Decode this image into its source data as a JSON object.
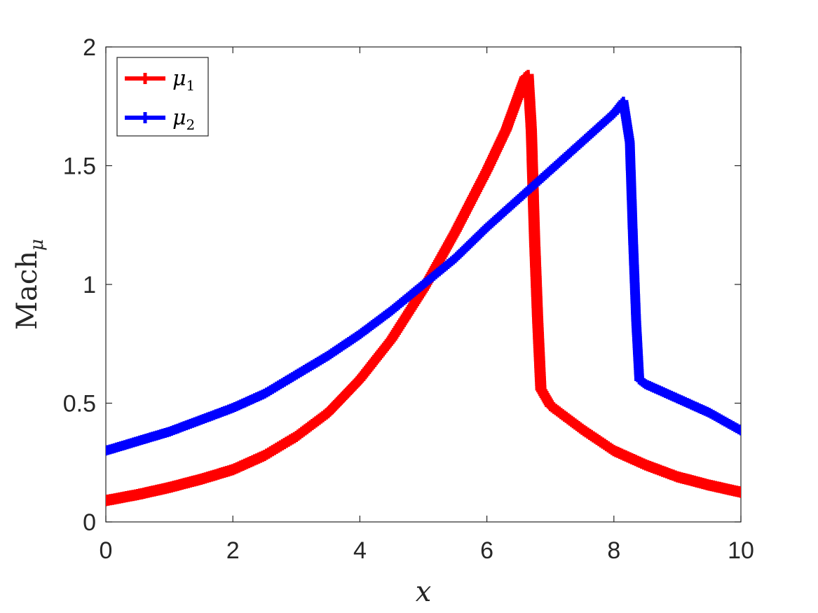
{
  "chart_data": {
    "type": "line",
    "xlabel": "x",
    "ylabel": "Mach",
    "ylabel_sub": "μ",
    "xlim": [
      0,
      10
    ],
    "ylim": [
      0,
      2
    ],
    "xticks": [
      "0",
      "2",
      "4",
      "6",
      "8",
      "10"
    ],
    "yticks": [
      "0",
      "0.5",
      "1",
      "1.5",
      "2"
    ],
    "legend_position": "top-left",
    "grid": false,
    "series": [
      {
        "name": "μ",
        "name_sub": "1",
        "color": "#ff0000",
        "marker": "plus",
        "x": [
          0,
          0.5,
          1,
          1.5,
          2,
          2.5,
          3,
          3.5,
          4,
          4.5,
          5,
          5.5,
          6,
          6.3,
          6.6,
          6.65,
          6.7,
          6.75,
          6.8,
          6.85,
          7,
          7.5,
          8,
          8.5,
          9,
          9.5,
          10
        ],
        "y": [
          0.09,
          0.115,
          0.145,
          0.18,
          0.22,
          0.28,
          0.36,
          0.46,
          0.6,
          0.77,
          0.98,
          1.22,
          1.48,
          1.65,
          1.87,
          1.88,
          1.65,
          1.2,
          0.85,
          0.56,
          0.49,
          0.39,
          0.3,
          0.24,
          0.19,
          0.155,
          0.125
        ]
      },
      {
        "name": "μ",
        "name_sub": "2",
        "color": "#0000ff",
        "marker": "plus",
        "x": [
          0,
          0.5,
          1,
          1.5,
          2,
          2.5,
          3,
          3.5,
          4,
          4.5,
          5,
          5.5,
          6,
          6.5,
          7,
          7.5,
          8,
          8.15,
          8.25,
          8.3,
          8.35,
          8.4,
          8.5,
          9,
          9.5,
          10
        ],
        "y": [
          0.3,
          0.34,
          0.38,
          0.43,
          0.48,
          0.54,
          0.62,
          0.7,
          0.79,
          0.89,
          1.0,
          1.11,
          1.24,
          1.36,
          1.48,
          1.6,
          1.72,
          1.77,
          1.6,
          1.2,
          0.85,
          0.6,
          0.58,
          0.52,
          0.46,
          0.385
        ]
      }
    ]
  }
}
